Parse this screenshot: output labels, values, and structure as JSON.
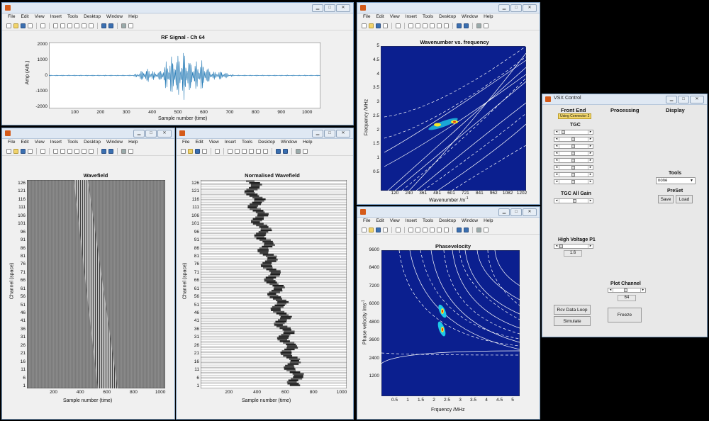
{
  "menu": [
    "File",
    "Edit",
    "View",
    "Insert",
    "Tools",
    "Desktop",
    "Window",
    "Help"
  ],
  "rf": {
    "title": "RF Signal - Ch 64",
    "ylabel": "Amp (Arb.)",
    "xlabel": "Sample number (time)",
    "yticks": [
      "2000",
      "1000",
      "0",
      "-1000",
      "-2000"
    ],
    "xticks": [
      "100",
      "200",
      "300",
      "400",
      "500",
      "600",
      "700",
      "800",
      "900",
      "1000"
    ]
  },
  "wavefield": {
    "title": "Wavefield",
    "ylabel": "Channel (space)",
    "xlabel": "Sample number (time)",
    "yticks": [
      "126",
      "121",
      "116",
      "111",
      "106",
      "101",
      "96",
      "91",
      "86",
      "81",
      "76",
      "71",
      "66",
      "61",
      "56",
      "51",
      "46",
      "41",
      "36",
      "31",
      "26",
      "21",
      "16",
      "11",
      "6",
      "1"
    ],
    "xticks": [
      "200",
      "400",
      "600",
      "800",
      "1000"
    ]
  },
  "normwave": {
    "title": "Normalised Wavefield",
    "ylabel": "Channel (space)",
    "xlabel": "Sample number (time)",
    "yticks": [
      "126",
      "121",
      "116",
      "111",
      "106",
      "101",
      "96",
      "91",
      "86",
      "81",
      "76",
      "71",
      "66",
      "61",
      "56",
      "51",
      "46",
      "41",
      "36",
      "31",
      "26",
      "21",
      "16",
      "11",
      "6",
      "1"
    ],
    "xticks": [
      "200",
      "400",
      "600",
      "800",
      "1000"
    ]
  },
  "wavenum": {
    "title": "Wavenumber vs. frequency",
    "ylabel": "Frequency /MHz",
    "xlabel": "Wavenumber /m",
    "xlabel_sup": "-1",
    "yticks": [
      "5",
      "4.5",
      "4",
      "3.5",
      "3",
      "2.5",
      "2",
      "1.5",
      "1",
      "0.5"
    ],
    "xticks": [
      "120",
      "240",
      "361",
      "481",
      "601",
      "721",
      "841",
      "962",
      "1082",
      "1202"
    ]
  },
  "phasevel": {
    "title": "Phasevelocity",
    "ylabel": "Phase velocity /ms",
    "ylabel_sup": "-1",
    "xlabel": "Frquency /MHz",
    "yticks": [
      "9600",
      "8400",
      "7200",
      "6000",
      "4800",
      "3600",
      "2400",
      "1200"
    ],
    "xticks": [
      "0.5",
      "1",
      "1.5",
      "2",
      "2.5",
      "3",
      "3.5",
      "4",
      "4.5",
      "5"
    ]
  },
  "vsx": {
    "title": "VSX Control",
    "front_end": "Front End",
    "connector": "Using Connector 2",
    "processing": "Processing",
    "display": "Display",
    "tgc": "TGC",
    "tgc_all_gain": "TGC All Gain",
    "high_voltage": "High Voltage P1",
    "hv_value": "1.6",
    "tools": "Tools",
    "tools_value": "none",
    "preset": "PreSet",
    "save": "Save",
    "load": "Load",
    "plot_channel": "Plot Channel",
    "plot_channel_value": "64",
    "freeze": "Freeze",
    "rcv_loop": "Rcv Data Loop",
    "simulate": "Simulate"
  }
}
